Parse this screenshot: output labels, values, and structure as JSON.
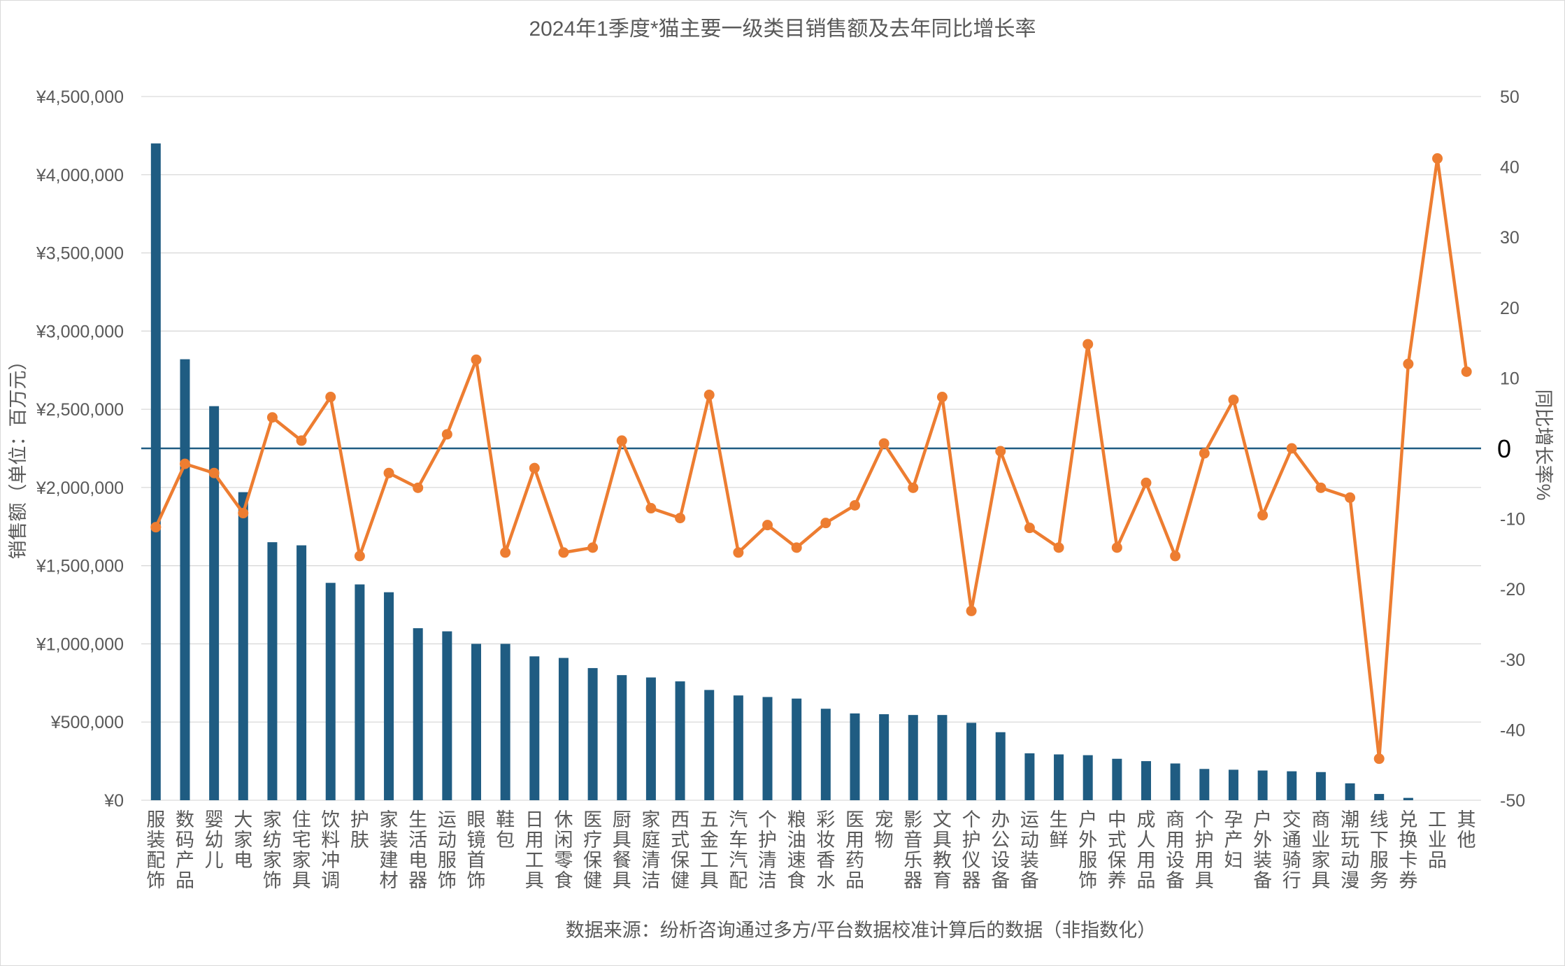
{
  "chart_data": {
    "type": "bar",
    "title": "2024年1季度*猫主要一级类目销售额及去年同比增长率",
    "ylabel": "销售额（单位：百万元）",
    "y2label": "同比增长率%",
    "source_note": "数据来源：纷析咨询通过多方/平台数据校准计算后的数据（非指数化）",
    "ylim": [
      0,
      4500000
    ],
    "y_ticks": [
      "¥0",
      "¥500,000",
      "¥1,000,000",
      "¥1,500,000",
      "¥2,000,000",
      "¥2,500,000",
      "¥3,000,000",
      "¥3,500,000",
      "¥4,000,000",
      "¥4,500,000"
    ],
    "y_tick_values": [
      0,
      500000,
      1000000,
      1500000,
      2000000,
      2500000,
      3000000,
      3500000,
      4000000,
      4500000
    ],
    "y2lim": [
      -50,
      50
    ],
    "y2_ticks": [
      "-50",
      "-40",
      "-30",
      "-20",
      "-10",
      "0",
      "10",
      "20",
      "30",
      "40",
      "50"
    ],
    "y2_tick_values": [
      -50,
      -40,
      -30,
      -20,
      -10,
      0,
      10,
      20,
      30,
      40,
      50
    ],
    "y2_zero_label": "0",
    "grid": true,
    "colors": {
      "bar": "#1f5c82",
      "line": "#ed7d31",
      "zero_line": "#1f5c82",
      "grid": "#d9d9d9",
      "text": "#595959"
    },
    "categories": [
      "服装配饰",
      "数码产品",
      "婴幼儿",
      "大家电",
      "家纺家饰",
      "住宅家具",
      "饮料冲调",
      "护肤",
      "家装建材",
      "生活电器",
      "运动服饰",
      "眼镜首饰",
      "鞋包",
      "日用工具",
      "休闲零食",
      "医疗保健",
      "厨具餐具",
      "家庭清洁",
      "西式保健",
      "五金工具",
      "汽车汽配",
      "个护清洁",
      "粮油速食",
      "彩妆香水",
      "医用药品",
      "宠物",
      "影音乐器",
      "文具教育",
      "个护仪器",
      "办公设备",
      "运动装备",
      "生鲜",
      "户外服饰",
      "中式保养",
      "成人用品",
      "商用设备",
      "个护用具",
      "孕产妇",
      "户外装备",
      "交通骑行",
      "商业家具",
      "潮玩动漫",
      "线下服务",
      "兑换卡券",
      "工业品",
      "其他"
    ],
    "series": [
      {
        "type": "bar",
        "axis": "left",
        "values": [
          4200000,
          2820000,
          2520000,
          1970000,
          1650000,
          1630000,
          1390000,
          1380000,
          1330000,
          1100000,
          1080000,
          1000000,
          1000000,
          920000,
          910000,
          845000,
          800000,
          785000,
          760000,
          705000,
          670000,
          660000,
          650000,
          585000,
          555000,
          550000,
          545000,
          545000,
          495000,
          435000,
          300000,
          293000,
          288000,
          265000,
          250000,
          235000,
          200000,
          195000,
          190000,
          185000,
          180000,
          108000,
          40000,
          15000,
          0,
          0
        ]
      },
      {
        "type": "line",
        "axis": "right",
        "values": [
          -11.2,
          -2.2,
          -3.5,
          -9.2,
          4.4,
          1.1,
          7.3,
          -15.3,
          -3.5,
          -5.6,
          2.0,
          12.6,
          -14.8,
          -2.8,
          -14.8,
          -14.1,
          1.1,
          -8.5,
          -9.9,
          7.6,
          -14.8,
          -10.9,
          -14.1,
          -10.6,
          -8.1,
          0.7,
          -5.6,
          7.3,
          -23.1,
          -0.4,
          -11.3,
          -14.1,
          14.8,
          -14.1,
          -4.9,
          -15.3,
          -0.7,
          6.9,
          -9.5,
          0.0,
          -5.6,
          -7.0,
          -44.1,
          12.0,
          41.2,
          10.9
        ]
      }
    ]
  }
}
